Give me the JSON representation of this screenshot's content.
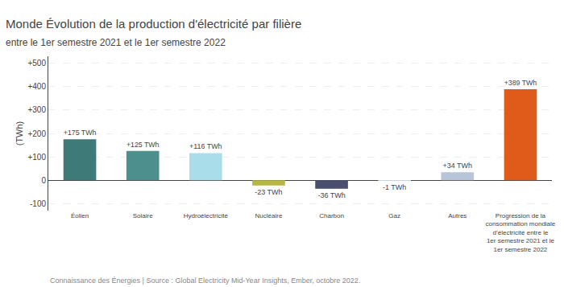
{
  "chart_data": {
    "type": "bar",
    "title": "Monde Évolution de la production d'électricité par filière",
    "subtitle": "entre le 1er semestre 2021 et le 1er semestre 2022",
    "ylabel": "(TWh)",
    "annotations": [
      "Connaissance des Énergies | Source : Global Electricity Mid-Year Insights, Ember, octobre 2022."
    ],
    "categories": [
      "Éolien",
      "Solaire",
      "Hydroélectricité",
      "Nucléaire",
      "Charbon",
      "Gaz",
      "Autres",
      "Progression de la consommation\nmondiale d’électricité entre\nle 1er semestre 2021 et le 1er semestre 2022"
    ],
    "values": [
      175,
      125,
      116,
      -23,
      -36,
      -1,
      34,
      389
    ],
    "value_labels": [
      "+175 TWh",
      "+125 TWh",
      "+116 TWh",
      "-23 TWh",
      "-36 TWh",
      "-1 TWh",
      "+34 TWh",
      "+389 TWh"
    ],
    "data_labels": true,
    "colors": [
      "#3d7a78",
      "#4d8f8c",
      "#a8dde9",
      "#b5b842",
      "#4a4f6e",
      "#c8d3e0",
      "#b8c4d8",
      "#e05a1a"
    ],
    "ylim": [
      -130,
      530
    ],
    "yticks": [
      {
        "value": 500,
        "label": "+500"
      },
      {
        "value": 400,
        "label": "+400"
      },
      {
        "value": 300,
        "label": "+300"
      },
      {
        "value": 200,
        "label": "+200"
      },
      {
        "value": 100,
        "label": "+100"
      },
      0,
      -100
    ],
    "grid": true
  }
}
